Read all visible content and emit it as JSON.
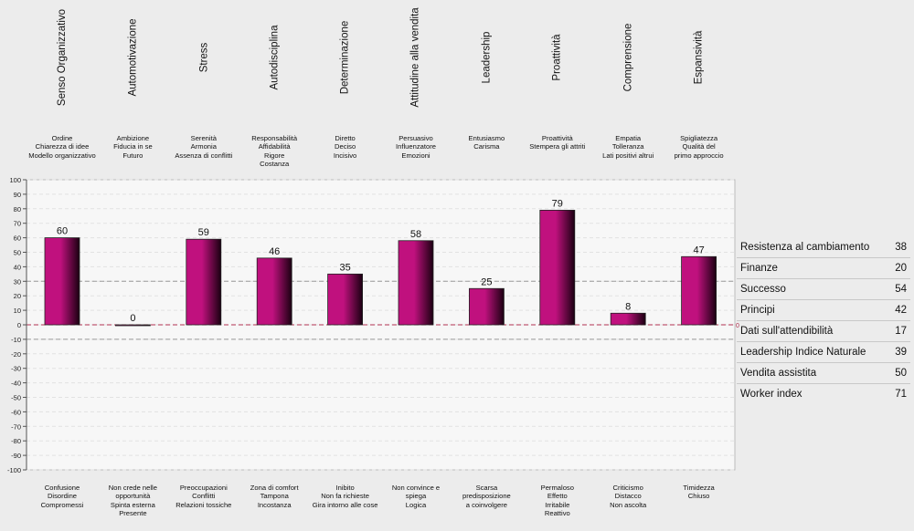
{
  "chart_data": {
    "type": "bar",
    "categories": [
      "Senso Organizzativo",
      "Automotivazione",
      "Stress",
      "Autodisciplina",
      "Determinazione",
      "Attitudine alla vendita",
      "Leadership",
      "Proattività",
      "Comprensione",
      "Espansività"
    ],
    "values": [
      60,
      0,
      59,
      46,
      35,
      58,
      25,
      79,
      8,
      47
    ],
    "ylim": [
      -100,
      100
    ],
    "y_ticks": [
      100,
      90,
      80,
      70,
      60,
      50,
      40,
      30,
      20,
      10,
      0,
      -10,
      -20,
      -30,
      -40,
      -50,
      -60,
      -70,
      -80,
      -90,
      -100
    ],
    "reference_lines": [
      30,
      0,
      -10
    ],
    "zero_marker": "0",
    "grid": true,
    "top_descriptors": [
      "Ordine\nChiarezza di idee\nModello organizzativo",
      "Ambizione\nFiducia in se\nFuturo",
      "Serenità\nArmonia\nAssenza di conflitti",
      "Responsabilità\nAffidabilità\nRigore\nCostanza",
      "Diretto\nDeciso\nIncisivo",
      "Persuasivo\nInfluenzatore\nEmozioni",
      "Entusiasmo\nCarisma",
      "Proattività\nStempera gli attriti",
      "Empatia\nTolleranza\nLati positivi altrui",
      "Spigliatezza\nQualità del\nprimo approccio"
    ],
    "bottom_descriptors": [
      "Confusione\nDisordine\nCompromessi",
      "Non crede nelle\nopportunità\nSpinta esterna\nPresente",
      "Preoccupazioni\nConflitti\nRelazioni tossiche",
      "Zona di comfort\nTampona\nIncostanza",
      "Inibito\nNon fa richieste\nGira intorno alle cose",
      "Non convince e\nspiega\nLogica",
      "Scarsa\npredisposizione\na coinvolgere",
      "Permaloso\nEffetto\nIrritabile\nReattivo",
      "Criticismo\nDistacco\nNon ascolta",
      "Timidezza\nChiuso"
    ]
  },
  "colors": {
    "bar_light": "#c0117e",
    "bar_dark": "#1a0011",
    "plot_bg": "#f7f7f7",
    "zero_line": "#b03050"
  },
  "stats": [
    {
      "label": "Resistenza al cambiamento",
      "value": "38"
    },
    {
      "label": "Finanze",
      "value": "20"
    },
    {
      "label": "Successo",
      "value": "54"
    },
    {
      "label": "Principi",
      "value": "42"
    },
    {
      "label": "Dati sull'attendibilità",
      "value": "17"
    },
    {
      "label": "Leadership Indice Naturale",
      "value": "39"
    },
    {
      "label": "Vendita assistita",
      "value": "50"
    },
    {
      "label": "Worker index",
      "value": "71"
    }
  ]
}
